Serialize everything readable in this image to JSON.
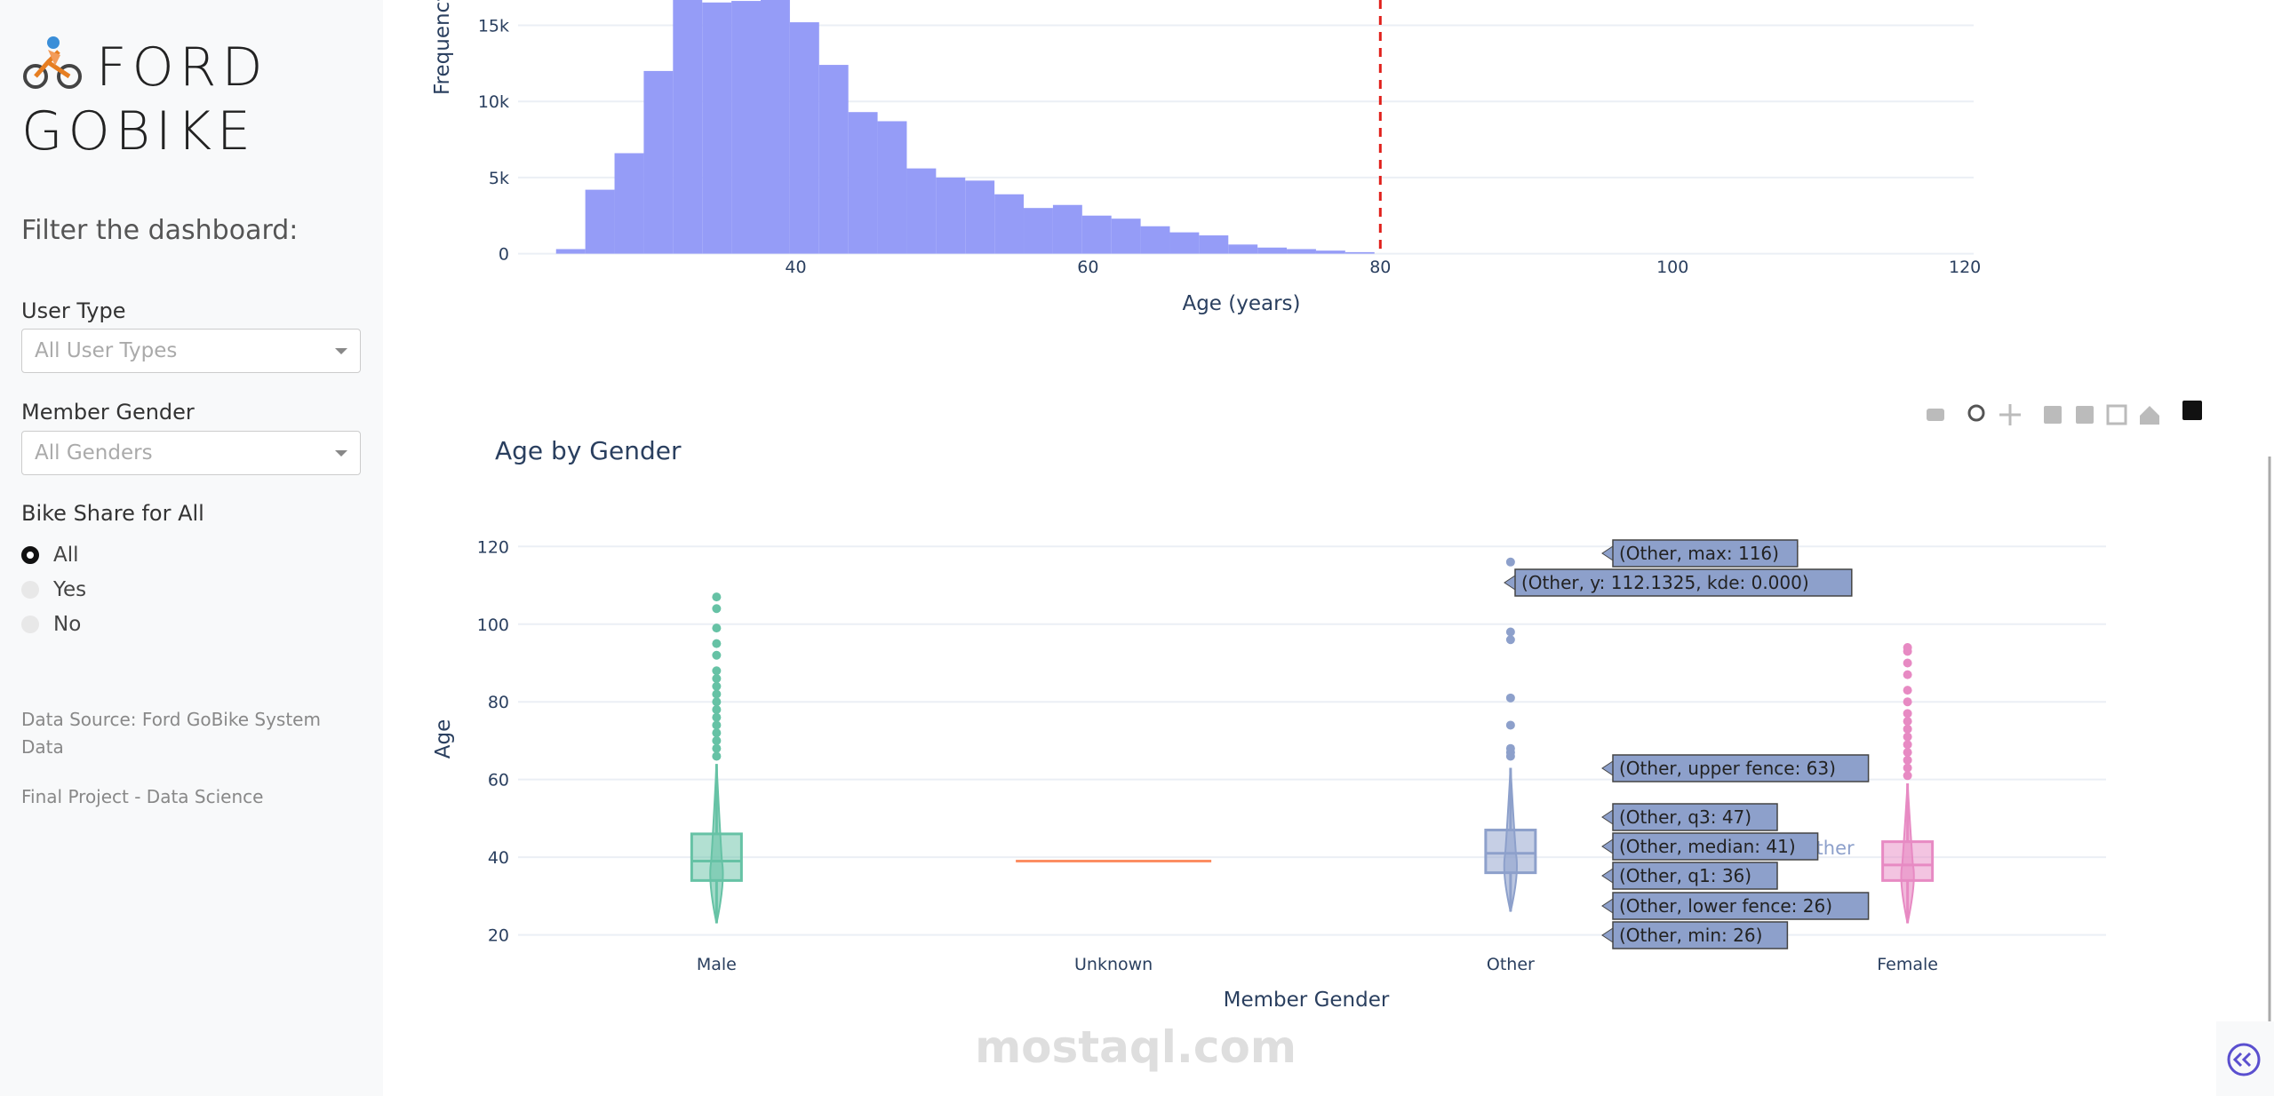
{
  "sidebar": {
    "title": "FORD GOBIKE",
    "filter_heading": "Filter the dashboard:",
    "filters": [
      {
        "label": "User Type",
        "placeholder": "All User Types"
      },
      {
        "label": "Member Gender",
        "placeholder": "All Genders"
      },
      {
        "label": "Bike Share for All",
        "options": [
          "All",
          "Yes",
          "No"
        ],
        "selected": "All"
      }
    ],
    "notes": [
      "Data Source: Ford GoBike System Data",
      "Final Project - Data Science"
    ]
  },
  "chart_data": [
    {
      "type": "histogram",
      "xlabel": "Age (years)",
      "ylabel": "Frequency",
      "color": "#959cf7",
      "bins": [
        23.6,
        25.6,
        27.6,
        29.6,
        31.6,
        33.6,
        35.6,
        37.6,
        39.6,
        41.6,
        43.6,
        45.6,
        47.6,
        49.6,
        51.6,
        53.6,
        55.6,
        57.6,
        59.6,
        61.6,
        63.6,
        65.6,
        67.6,
        69.6,
        71.6,
        73.6,
        75.6,
        77.6,
        79.6
      ],
      "counts": [
        300,
        4200,
        6600,
        12000,
        18500,
        16500,
        16600,
        19000,
        15200,
        12400,
        9300,
        8700,
        5600,
        5000,
        4800,
        3900,
        3000,
        3200,
        2500,
        2300,
        1800,
        1400,
        1200,
        600,
        400,
        300,
        200,
        100
      ],
      "xlim": [
        21,
        120.6
      ],
      "ylim": [
        0,
        20000
      ],
      "xticks": [
        40,
        60,
        80,
        100,
        120
      ],
      "yticks": [
        0,
        {
          "value": 5000,
          "label": "5k"
        },
        {
          "value": 10000,
          "label": "10k"
        },
        {
          "value": 15000,
          "label": "15k"
        }
      ],
      "vline": {
        "x": 80,
        "color": "#e0201b"
      },
      "grid": true
    },
    {
      "type": "box",
      "title": "Age by Gender",
      "xlabel": "Member Gender",
      "ylabel": "Age",
      "categories": [
        "Male",
        "Unknown",
        "Other",
        "Female"
      ],
      "series": [
        {
          "name": "Male",
          "color": "#66c2a5",
          "lower_fence": 23,
          "q1": 34,
          "median": 39,
          "q3": 46,
          "upper_fence": 64,
          "outliers": [
            66,
            68,
            70,
            72,
            74,
            76,
            78,
            80,
            82,
            84,
            86,
            88,
            92,
            95,
            99,
            104,
            107
          ]
        },
        {
          "name": "Unknown",
          "color": "#fc8d62",
          "lower_fence": 39,
          "q1": 39,
          "median": 39,
          "q3": 39,
          "upper_fence": 39,
          "outliers": []
        },
        {
          "name": "Other",
          "color": "#8da0cb",
          "lower_fence": 26,
          "q1": 36,
          "median": 41,
          "q3": 47,
          "upper_fence": 63,
          "outliers": [
            66,
            67,
            68,
            74,
            81,
            96,
            98,
            116
          ]
        },
        {
          "name": "Female",
          "color": "#e78ac3",
          "lower_fence": 23,
          "q1": 34,
          "median": 38,
          "q3": 44,
          "upper_fence": 59,
          "outliers": [
            61,
            63,
            65,
            67,
            69,
            71,
            73,
            75,
            77,
            80,
            83,
            87,
            90,
            93,
            94
          ]
        }
      ],
      "ylim": [
        20,
        120
      ],
      "yticks": [
        20,
        40,
        60,
        80,
        100,
        120
      ],
      "grid": true,
      "hover_labels": [
        "(Other, max: 116)",
        "(Other, y: 112.1325, kde: 0.000)",
        "(Other, upper fence: 63)",
        "(Other, q3: 47)",
        "(Other, median: 41)",
        "(Other, q1: 36)",
        "(Other, lower fence: 26)",
        "(Other, min: 26)"
      ]
    }
  ],
  "watermark": "mostaql.com"
}
